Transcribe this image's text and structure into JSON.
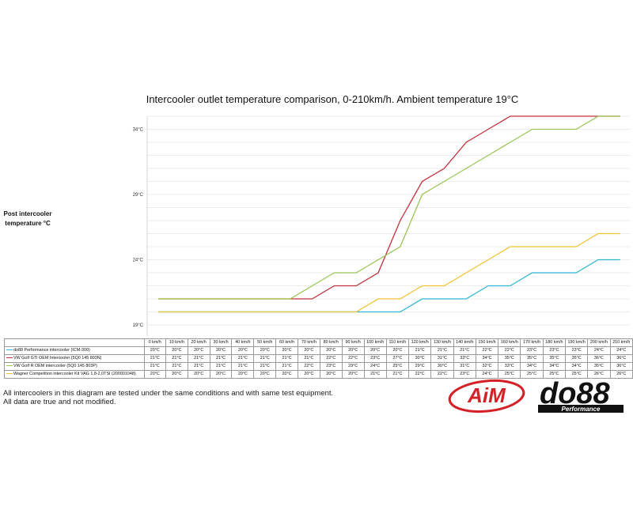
{
  "chart_data": {
    "type": "line",
    "title": "Intercooler outlet temperature comparison, 0-210km/h. Ambient temperature 19°C",
    "ylabel": "Post intercooler temperature °C",
    "xlabel": "",
    "ylim": [
      19,
      35
    ],
    "yticks": [
      "19°C",
      "24°C",
      "29°C",
      "34°C"
    ],
    "yticks_values": [
      19,
      24,
      29,
      34
    ],
    "grid": true,
    "categories": [
      "0 km/h",
      "10 km/h",
      "20 km/h",
      "30 km/h",
      "40 km/h",
      "50 km/h",
      "60 km/h",
      "70 km/h",
      "80 km/h",
      "90 km/h",
      "100 km/h",
      "110 km/h",
      "120 km/h",
      "130 km/h",
      "140 km/h",
      "150 km/h",
      "160 km/h",
      "170 km/h",
      "180 km/h",
      "190 km/h",
      "200 km/h",
      "210 km/h"
    ],
    "series": [
      {
        "name": "do88 Performance intercooler (ICM-300)",
        "color": "#2eb7d4",
        "values": [
          20,
          20,
          20,
          20,
          20,
          20,
          20,
          20,
          20,
          20,
          20,
          20,
          21,
          21,
          21,
          22,
          22,
          23,
          23,
          23,
          24,
          24
        ],
        "labels": [
          "20°C",
          "20°C",
          "20°C",
          "20°C",
          "20°C",
          "20°C",
          "20°C",
          "20°C",
          "20°C",
          "20°C",
          "20°C",
          "20°C",
          "21°C",
          "21°C",
          "21°C",
          "22°C",
          "22°C",
          "23°C",
          "23°C",
          "23°C",
          "24°C",
          "24°C"
        ]
      },
      {
        "name": "VW Golf GTI OEM Intercooler (5Q0 145 803N)",
        "color": "#c2313b",
        "values": [
          21,
          21,
          21,
          21,
          21,
          21,
          21,
          21,
          22,
          22,
          23,
          27,
          30,
          31,
          33,
          34,
          35,
          35,
          35,
          35,
          36,
          36
        ],
        "labels": [
          "21°C",
          "21°C",
          "21°C",
          "21°C",
          "21°C",
          "21°C",
          "21°C",
          "21°C",
          "22°C",
          "22°C",
          "23°C",
          "27°C",
          "30°C",
          "31°C",
          "33°C",
          "34°C",
          "35°C",
          "35°C",
          "35°C",
          "35°C",
          "36°C",
          "36°C"
        ]
      },
      {
        "name": "VW Golf R OEM intercooler (5Q0 145 803P)",
        "color": "#9ac556",
        "values": [
          21,
          21,
          21,
          21,
          21,
          21,
          21,
          22,
          23,
          23,
          24,
          25,
          29,
          30,
          31,
          32,
          33,
          34,
          34,
          34,
          35,
          36
        ],
        "labels": [
          "21°C",
          "21°C",
          "21°C",
          "21°C",
          "21°C",
          "21°C",
          "21°C",
          "22°C",
          "23°C",
          "23°C",
          "24°C",
          "25°C",
          "29°C",
          "30°C",
          "31°C",
          "32°C",
          "33°C",
          "34°C",
          "34°C",
          "34°C",
          "35°C",
          "36°C"
        ]
      },
      {
        "name": "Wagner Competition intercooler Kit VAG 1,8-2,0TSI (200001048)",
        "color": "#f1c232",
        "values": [
          20,
          20,
          20,
          20,
          20,
          20,
          20,
          20,
          20,
          20,
          21,
          21,
          22,
          22,
          23,
          24,
          25,
          25,
          25,
          25,
          26,
          26
        ],
        "labels": [
          "20°C",
          "20°C",
          "20°C",
          "20°C",
          "20°C",
          "20°C",
          "20°C",
          "20°C",
          "20°C",
          "20°C",
          "21°C",
          "21°C",
          "22°C",
          "22°C",
          "23°C",
          "24°C",
          "25°C",
          "25°C",
          "25°C",
          "25°C",
          "26°C",
          "26°C"
        ]
      }
    ]
  },
  "footnote": {
    "line1": "All intercoolers in this diagram are tested under the same conditions and with same test equipment.",
    "line2": "All data are true and not modified."
  },
  "logos": {
    "aim": "AiM",
    "do88": "do88",
    "do88_sub": "Performance"
  }
}
